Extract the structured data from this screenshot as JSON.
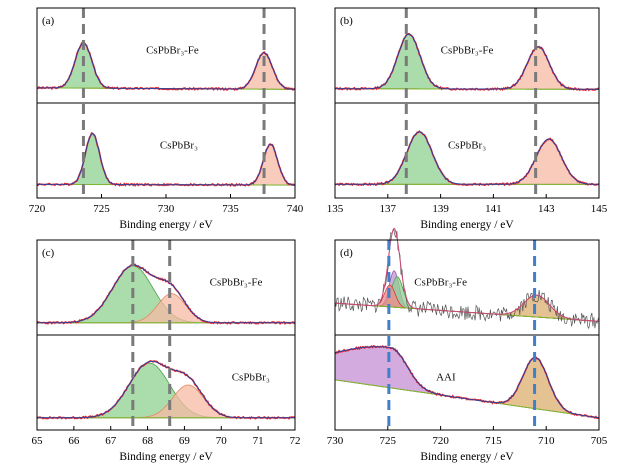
{
  "figure": {
    "panels_label": "XPS spectra",
    "colors": {
      "raw": "#e8262a",
      "envelope": "#2f3f9e",
      "baseline": "#7cb832",
      "green_fill": "#8fd08f",
      "green_stroke": "#4aa24a",
      "orange_fill": "#f6b9a3",
      "orange_stroke": "#e28a5c",
      "purple_fill": "#c68fd3",
      "tan_fill": "#dcae6d",
      "dash": "#7a7a7a",
      "dash_blue": "#3f7fcc",
      "noise": "#555555"
    }
  },
  "chart_data": [
    {
      "type": "line",
      "panel": "(a)",
      "xlabel": "Binding energy / eV",
      "xlim": [
        720,
        740
      ],
      "xticks": [
        "720",
        "725",
        "730",
        "735",
        "740"
      ],
      "dash_lines": [
        723.6,
        737.6
      ],
      "spectra": [
        {
          "name": "CsPbBr3-Fe",
          "label": "CsPbBr₃-Fe",
          "label_x": 730.5,
          "peaks": [
            {
              "center": 723.6,
              "height": 0.62,
              "width": 0.65,
              "fill": "green"
            },
            {
              "center": 737.6,
              "height": 0.5,
              "width": 0.65,
              "fill": "orange"
            }
          ],
          "baseline": [
            0.07,
            0.05
          ]
        },
        {
          "name": "CsPbBr3",
          "label": "CsPbBr₃",
          "label_x": 731,
          "peaks": [
            {
              "center": 724.3,
              "height": 0.7,
              "width": 0.55,
              "fill": "green"
            },
            {
              "center": 738.1,
              "height": 0.56,
              "width": 0.55,
              "fill": "orange"
            }
          ],
          "baseline": [
            0.05,
            0.04
          ]
        }
      ]
    },
    {
      "type": "line",
      "panel": "(b)",
      "xlabel": "Binding energy / eV",
      "xlim": [
        135,
        145
      ],
      "xticks": [
        "135",
        "137",
        "139",
        "141",
        "143",
        "145"
      ],
      "dash_lines": [
        137.7,
        142.6
      ],
      "spectra": [
        {
          "name": "CsPbBr3-Fe",
          "label": "CsPbBr₃-Fe",
          "label_x": 140,
          "peaks": [
            {
              "center": 137.8,
              "height": 0.75,
              "width": 0.42,
              "fill": "green"
            },
            {
              "center": 142.7,
              "height": 0.58,
              "width": 0.42,
              "fill": "orange"
            }
          ],
          "baseline": [
            0.06,
            0.05
          ]
        },
        {
          "name": "CsPbBr3",
          "label": "CsPbBr₃",
          "label_x": 140,
          "peaks": [
            {
              "center": 138.2,
              "height": 0.72,
              "width": 0.48,
              "fill": "green"
            },
            {
              "center": 143.1,
              "height": 0.62,
              "width": 0.48,
              "fill": "orange"
            }
          ],
          "baseline": [
            0.05,
            0.05
          ]
        }
      ]
    },
    {
      "type": "line",
      "panel": "(c)",
      "xlabel": "Binding energy / eV",
      "xlim": [
        65,
        72
      ],
      "xticks": [
        "65",
        "66",
        "67",
        "68",
        "69",
        "70",
        "71",
        "72"
      ],
      "dash_lines": [
        67.6,
        68.6
      ],
      "spectra": [
        {
          "name": "CsPbBr3-Fe",
          "label": "CsPbBr₃-Fe",
          "label_x": 70.4,
          "peaks": [
            {
              "center": 67.6,
              "height": 0.78,
              "width": 0.55,
              "fill": "green"
            },
            {
              "center": 68.65,
              "height": 0.4,
              "width": 0.38,
              "fill": "orange"
            }
          ],
          "baseline": [
            0.03,
            0.03
          ]
        },
        {
          "name": "CsPbBr3",
          "label": "CsPbBr₃",
          "label_x": 70.8,
          "peaks": [
            {
              "center": 68.05,
              "height": 0.75,
              "width": 0.55,
              "fill": "green"
            },
            {
              "center": 69.1,
              "height": 0.45,
              "width": 0.42,
              "fill": "orange"
            }
          ],
          "baseline": [
            0.03,
            0.03
          ]
        }
      ]
    },
    {
      "type": "line",
      "panel": "(d)",
      "xlabel": "Binding energy / eV",
      "xlim": [
        730,
        705
      ],
      "xticks": [
        "730",
        "725",
        "720",
        "715",
        "710",
        "705"
      ],
      "dash_lines": [
        724.9,
        711.1
      ],
      "spectra": [
        {
          "name": "CsPbBr3-Fe",
          "label": "CsPbBr₃-Fe",
          "label_x": 720,
          "noisy": true,
          "peaks": [
            {
              "center": 724.4,
              "height": 0.5,
              "width": 0.45,
              "fill": "purple"
            },
            {
              "center": 724.1,
              "height": 0.42,
              "width": 0.55,
              "fill": "green"
            },
            {
              "center": 724.8,
              "height": 0.3,
              "width": 0.5,
              "fill": "red"
            },
            {
              "center": 710.9,
              "height": 0.3,
              "width": 1.2,
              "fill": "tan"
            }
          ],
          "baseline": [
            0.3,
            0.05
          ]
        },
        {
          "name": "AAI",
          "label": "AAI",
          "label_x": 719.5,
          "peaks": [
            {
              "center": 724.7,
              "height": 0.55,
              "width": 1.5,
              "fill": "purple",
              "tail": true
            },
            {
              "center": 711.0,
              "height": 0.7,
              "width": 1.2,
              "fill": "tan"
            }
          ],
          "baseline": [
            0.55,
            0.03
          ]
        }
      ]
    }
  ]
}
